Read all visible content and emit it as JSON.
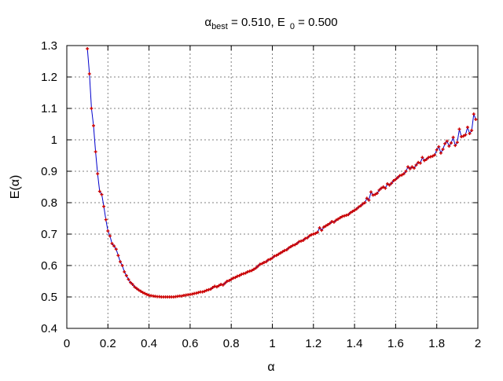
{
  "chart_data": {
    "type": "line",
    "title_parts": {
      "alpha": "α",
      "best_sub": "best",
      "best_value": " = 0.510, E",
      "zero_sub": "0",
      "zero_value": " = 0.500"
    },
    "xlabel": "α",
    "ylabel": "E(α)",
    "xlim": [
      0,
      2
    ],
    "ylim": [
      0.4,
      1.3
    ],
    "xticks": [
      0,
      0.2,
      0.4,
      0.6,
      0.8,
      1,
      1.2,
      1.4,
      1.6,
      1.8,
      2
    ],
    "xtick_labels": [
      "0",
      "0.2",
      "0.4",
      "0.6",
      "0.8",
      "1",
      "1.2",
      "1.4",
      "1.6",
      "1.8",
      "2"
    ],
    "yticks": [
      0.4,
      0.5,
      0.6,
      0.7,
      0.8,
      0.9,
      1.0,
      1.1,
      1.2,
      1.3
    ],
    "ytick_labels": [
      "0.4",
      "0.5",
      "0.6",
      "0.7",
      "0.8",
      "0.9",
      "1",
      "1.1",
      "1.2",
      "1.3"
    ],
    "grid": true,
    "colors": {
      "line": "#0000cc",
      "marker": "#cc0000",
      "grid": "#808080"
    },
    "series": [
      {
        "x": [
          0.1,
          0.11,
          0.12,
          0.13,
          0.14,
          0.15,
          0.16,
          0.17,
          0.18,
          0.19,
          0.2,
          0.21,
          0.22,
          0.23,
          0.24,
          0.25,
          0.26,
          0.27,
          0.28,
          0.29,
          0.3,
          0.31,
          0.32,
          0.33,
          0.34,
          0.35,
          0.36,
          0.37,
          0.38,
          0.39,
          0.4,
          0.41,
          0.42,
          0.43,
          0.44,
          0.45,
          0.46,
          0.47,
          0.48,
          0.49,
          0.5,
          0.51,
          0.52,
          0.53,
          0.54,
          0.55,
          0.56,
          0.57,
          0.58,
          0.59,
          0.6,
          0.61,
          0.62,
          0.63,
          0.64,
          0.65,
          0.66,
          0.67,
          0.68,
          0.69,
          0.7,
          0.71,
          0.72,
          0.73,
          0.74,
          0.75,
          0.76,
          0.77,
          0.78,
          0.79,
          0.8,
          0.81,
          0.82,
          0.83,
          0.84,
          0.85,
          0.86,
          0.87,
          0.88,
          0.89,
          0.9,
          0.91,
          0.92,
          0.93,
          0.94,
          0.95,
          0.96,
          0.97,
          0.98,
          0.99,
          1.0,
          1.01,
          1.02,
          1.03,
          1.04,
          1.05,
          1.06,
          1.07,
          1.08,
          1.09,
          1.1,
          1.11,
          1.12,
          1.13,
          1.14,
          1.15,
          1.16,
          1.17,
          1.18,
          1.19,
          1.2,
          1.21,
          1.22,
          1.23,
          1.24,
          1.25,
          1.26,
          1.27,
          1.28,
          1.29,
          1.3,
          1.31,
          1.32,
          1.33,
          1.34,
          1.35,
          1.36,
          1.37,
          1.38,
          1.39,
          1.4,
          1.41,
          1.42,
          1.43,
          1.44,
          1.45,
          1.46,
          1.47,
          1.48,
          1.49,
          1.5,
          1.51,
          1.52,
          1.53,
          1.54,
          1.55,
          1.56,
          1.57,
          1.58,
          1.59,
          1.6,
          1.61,
          1.62,
          1.63,
          1.64,
          1.65,
          1.66,
          1.67,
          1.68,
          1.69,
          1.7,
          1.71,
          1.72,
          1.73,
          1.74,
          1.75,
          1.76,
          1.77,
          1.78,
          1.79,
          1.8,
          1.81,
          1.82,
          1.83,
          1.84,
          1.85,
          1.86,
          1.87,
          1.88,
          1.89,
          1.9,
          1.91,
          1.92,
          1.93,
          1.94,
          1.95,
          1.96,
          1.97,
          1.98,
          1.99
        ],
        "y": [
          1.29,
          1.21,
          1.1,
          1.045,
          0.962,
          0.892,
          0.836,
          0.826,
          0.788,
          0.746,
          0.71,
          0.694,
          0.67,
          0.662,
          0.652,
          0.632,
          0.612,
          0.6,
          0.58,
          0.568,
          0.556,
          0.546,
          0.54,
          0.532,
          0.527,
          0.522,
          0.518,
          0.514,
          0.511,
          0.508,
          0.505,
          0.504,
          0.503,
          0.502,
          0.501,
          0.501,
          0.5,
          0.5,
          0.5,
          0.5,
          0.5,
          0.5,
          0.5,
          0.501,
          0.502,
          0.503,
          0.503,
          0.505,
          0.506,
          0.507,
          0.508,
          0.509,
          0.511,
          0.512,
          0.514,
          0.516,
          0.516,
          0.518,
          0.521,
          0.523,
          0.525,
          0.53,
          0.534,
          0.532,
          0.536,
          0.54,
          0.538,
          0.544,
          0.55,
          0.552,
          0.556,
          0.56,
          0.562,
          0.566,
          0.568,
          0.572,
          0.574,
          0.576,
          0.58,
          0.582,
          0.584,
          0.588,
          0.592,
          0.598,
          0.604,
          0.606,
          0.61,
          0.612,
          0.618,
          0.62,
          0.624,
          0.63,
          0.632,
          0.636,
          0.64,
          0.644,
          0.648,
          0.65,
          0.656,
          0.66,
          0.664,
          0.666,
          0.67,
          0.676,
          0.678,
          0.68,
          0.686,
          0.688,
          0.694,
          0.698,
          0.7,
          0.702,
          0.706,
          0.72,
          0.712,
          0.722,
          0.726,
          0.73,
          0.734,
          0.74,
          0.738,
          0.744,
          0.748,
          0.752,
          0.756,
          0.758,
          0.76,
          0.762,
          0.768,
          0.772,
          0.776,
          0.78,
          0.786,
          0.79,
          0.796,
          0.8,
          0.814,
          0.808,
          0.834,
          0.824,
          0.826,
          0.83,
          0.84,
          0.846,
          0.85,
          0.846,
          0.86,
          0.856,
          0.862,
          0.87,
          0.874,
          0.88,
          0.886,
          0.888,
          0.892,
          0.9,
          0.914,
          0.908,
          0.914,
          0.91,
          0.92,
          0.928,
          0.926,
          0.944,
          0.934,
          0.938,
          0.944,
          0.946,
          0.948,
          0.952,
          0.968,
          0.978,
          0.958,
          0.97,
          0.988,
          0.996,
          0.98,
          0.99,
          1.008,
          0.982,
          0.992,
          1.034,
          1.01,
          1.012,
          1.016,
          1.04,
          1.02,
          1.03,
          1.082,
          1.065
        ]
      }
    ]
  }
}
